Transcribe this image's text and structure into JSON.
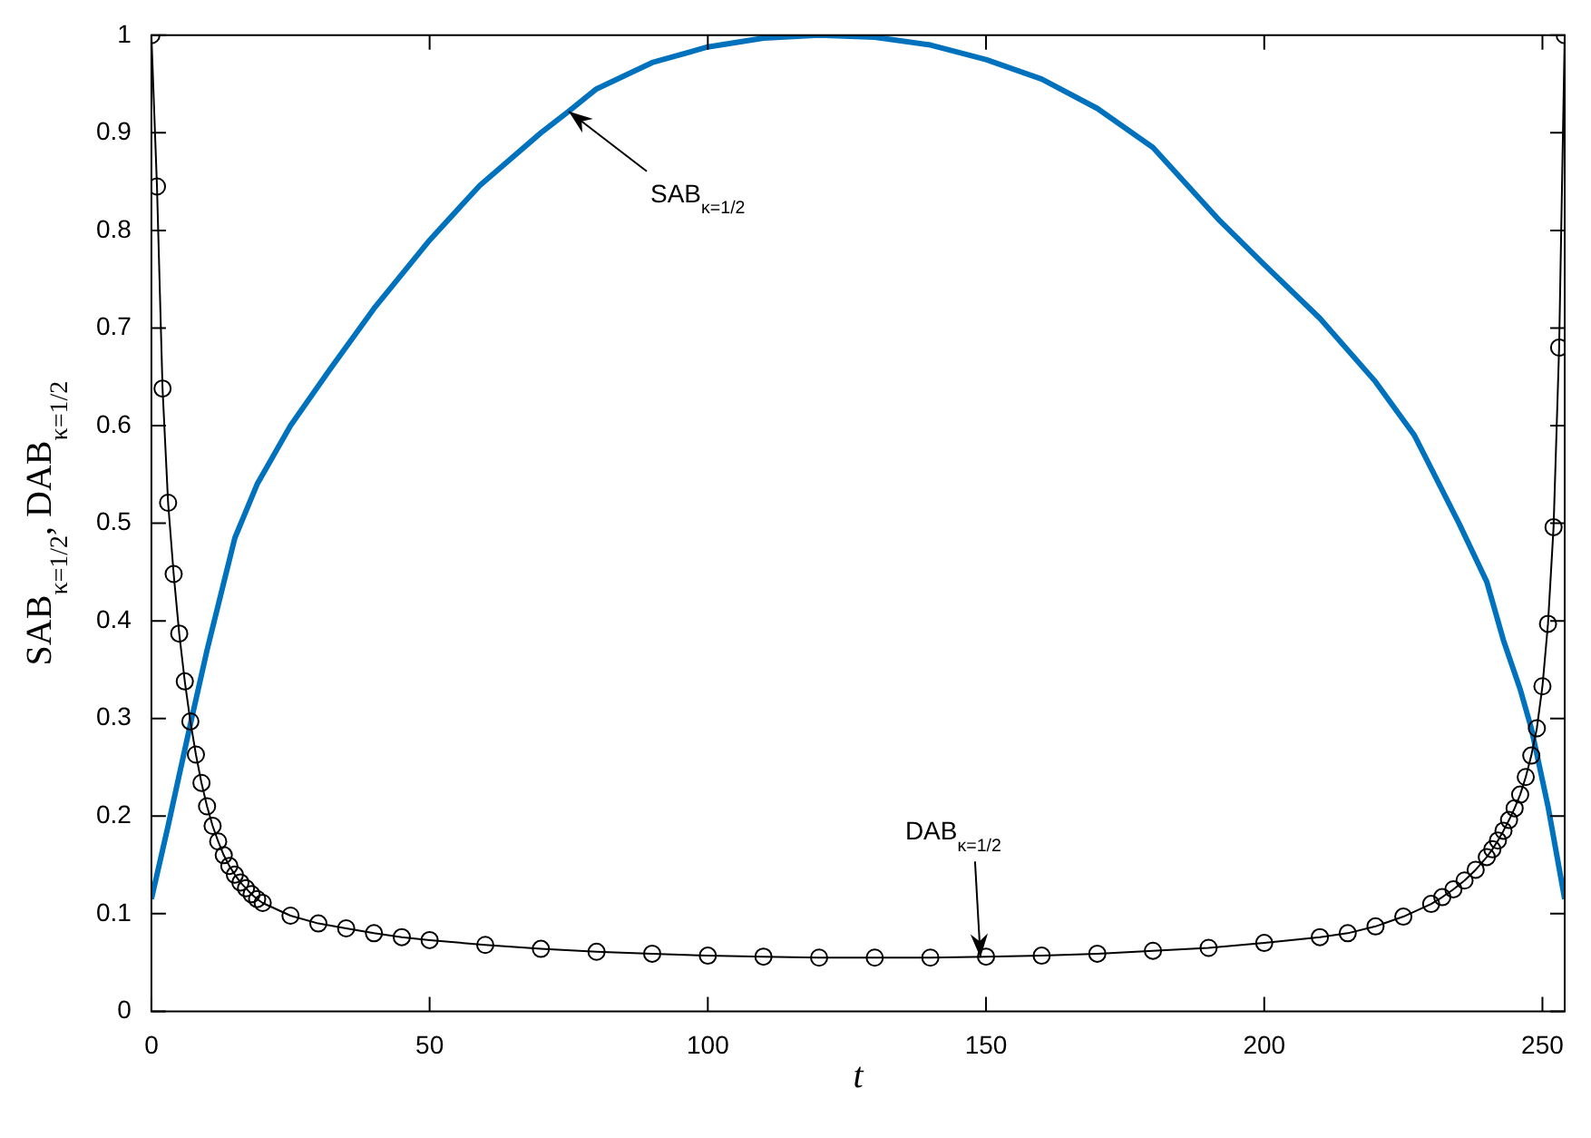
{
  "chart_data": {
    "type": "line",
    "xlabel": "t",
    "ylabel": "SAB$_{κ=1/2}$, DAB$_{κ=1/2}$",
    "xlim": [
      0,
      254
    ],
    "xticks": [
      0,
      50,
      100,
      150,
      200,
      250
    ],
    "ylim": [
      0,
      1
    ],
    "yticks": [
      0,
      0.1,
      0.2,
      0.3,
      0.4,
      0.5,
      0.6,
      0.7,
      0.8,
      0.9,
      1
    ],
    "grid": false,
    "legend": false,
    "series": [
      {
        "color": "#0072bd",
        "marker": "none",
        "x": [
          0,
          3,
          7,
          10,
          15,
          19,
          25,
          32,
          40,
          50,
          59,
          70,
          75,
          80,
          90,
          100,
          110,
          120,
          130,
          140,
          150,
          160,
          170,
          180,
          192,
          200,
          210,
          220,
          227,
          235,
          240,
          243,
          246,
          248,
          251,
          254
        ],
        "values": [
          0.115,
          0.19,
          0.294,
          0.37,
          0.485,
          0.54,
          0.6,
          0.657,
          0.72,
          0.79,
          0.846,
          0.9,
          0.922,
          0.945,
          0.972,
          0.988,
          0.997,
          1.0,
          0.998,
          0.99,
          0.975,
          0.955,
          0.925,
          0.885,
          0.81,
          0.765,
          0.71,
          0.645,
          0.59,
          0.5,
          0.44,
          0.38,
          0.33,
          0.29,
          0.21,
          0.115
        ]
      },
      {
        "color": "#000000",
        "marker": "circle",
        "x": [
          0,
          1,
          2,
          3,
          4,
          5,
          6,
          7,
          8,
          9,
          10,
          11,
          12,
          13,
          14,
          15,
          16,
          17,
          18,
          19,
          20,
          25,
          30,
          35,
          40,
          45,
          50,
          60,
          70,
          80,
          90,
          100,
          110,
          120,
          130,
          140,
          150,
          160,
          170,
          180,
          190,
          200,
          210,
          215,
          220,
          225,
          230,
          232,
          234,
          236,
          238,
          240,
          241,
          242,
          243,
          244,
          245,
          246,
          247,
          248,
          249,
          250,
          251,
          252,
          253,
          254
        ],
        "values": [
          1.0,
          0.845,
          0.638,
          0.521,
          0.448,
          0.387,
          0.338,
          0.297,
          0.263,
          0.234,
          0.21,
          0.19,
          0.174,
          0.16,
          0.149,
          0.14,
          0.132,
          0.126,
          0.12,
          0.115,
          0.111,
          0.098,
          0.09,
          0.085,
          0.08,
          0.076,
          0.073,
          0.068,
          0.064,
          0.061,
          0.059,
          0.057,
          0.056,
          0.055,
          0.055,
          0.055,
          0.056,
          0.057,
          0.059,
          0.062,
          0.065,
          0.07,
          0.076,
          0.08,
          0.087,
          0.097,
          0.11,
          0.117,
          0.125,
          0.134,
          0.145,
          0.158,
          0.166,
          0.175,
          0.185,
          0.196,
          0.208,
          0.222,
          0.24,
          0.262,
          0.29,
          0.333,
          0.397,
          0.496,
          0.68,
          1.0
        ]
      }
    ],
    "annotations": [
      {
        "text": "SAB$_{κ=1/2}$",
        "x": 75,
        "y": 0.922
      },
      {
        "text": "DAB$_{κ=1/2}$",
        "x": 149,
        "y": 0.055
      }
    ]
  }
}
